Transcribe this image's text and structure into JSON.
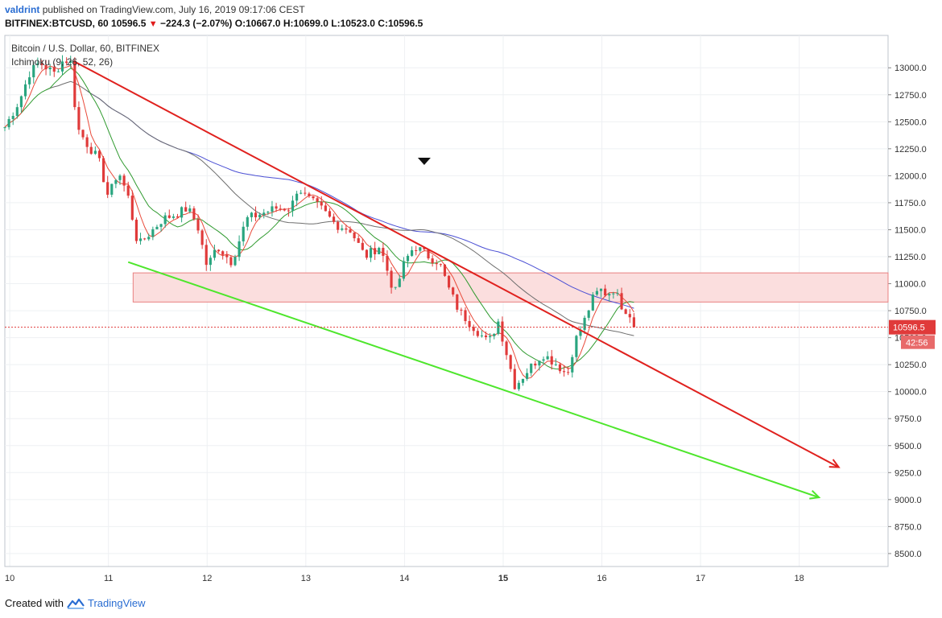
{
  "header": {
    "author": "valdrint",
    "published": "published on TradingView.com, July 16, 2019 09:17:06 CEST"
  },
  "symbol_line": {
    "symbol": "BITFINEX:BTCUSD, 60",
    "last": "10596.5",
    "change": "−224.3 (−2.07%)",
    "o_label": "O:",
    "o": "10667.0",
    "h_label": "H:",
    "h": "10699.0",
    "l_label": "L:",
    "l": "10523.0",
    "c_label": "C:",
    "c": "10596.5"
  },
  "footer": {
    "created_with": "Created with",
    "brand": "TradingView"
  },
  "colors": {
    "up": "#2aa57f",
    "down": "#e03a3a",
    "resistance_line": "#e0211e",
    "support_line": "#4ee62c",
    "zone_fill": "#fbdede",
    "zone_stroke": "#e88080",
    "ma_red": "#e94a3a",
    "ma_green": "#2f9a2f",
    "ma_gray": "#6e6e6e",
    "ma_blue": "#4a4fd4",
    "grid": "#eef0f3"
  },
  "chart_data": {
    "type": "candlestick",
    "title": "Bitcoin / U.S. Dollar, 60, BITFINEX",
    "indicator_label": "Ichimoku (9, 26, 52, 26)",
    "x_axis_ticks": [
      "10",
      "11",
      "12",
      "13",
      "14",
      "15",
      "16",
      "17",
      "18"
    ],
    "y_axis_ticks": [
      "8500.0",
      "8750.0",
      "9000.0",
      "9250.0",
      "9500.0",
      "9750.0",
      "10000.0",
      "10250.0",
      "10500.0",
      "10750.0",
      "11000.0",
      "11250.0",
      "11500.0",
      "11750.0",
      "12000.0",
      "12250.0",
      "12500.0",
      "12750.0",
      "13000.0"
    ],
    "ylim": [
      8380,
      13300
    ],
    "xlim": [
      9.95,
      18.9
    ],
    "grid": true,
    "price_label": "10596.5",
    "countdown_label": "42:56",
    "close_path": [
      [
        9.95,
        12450
      ],
      [
        10.1,
        12700
      ],
      [
        10.2,
        12950
      ],
      [
        10.3,
        13050
      ],
      [
        10.45,
        12950
      ],
      [
        10.55,
        13080
      ],
      [
        10.62,
        13050
      ],
      [
        10.68,
        12450
      ],
      [
        10.78,
        12300
      ],
      [
        10.9,
        12150
      ],
      [
        11.0,
        11800
      ],
      [
        11.1,
        12050
      ],
      [
        11.2,
        11800
      ],
      [
        11.3,
        11350
      ],
      [
        11.4,
        11450
      ],
      [
        11.55,
        11600
      ],
      [
        11.7,
        11650
      ],
      [
        11.8,
        11700
      ],
      [
        11.9,
        11550
      ],
      [
        12.0,
        11150
      ],
      [
        12.1,
        11350
      ],
      [
        12.25,
        11200
      ],
      [
        12.4,
        11600
      ],
      [
        12.55,
        11650
      ],
      [
        12.7,
        11700
      ],
      [
        12.85,
        11700
      ],
      [
        12.92,
        11900
      ],
      [
        13.0,
        11800
      ],
      [
        13.15,
        11700
      ],
      [
        13.3,
        11550
      ],
      [
        13.45,
        11500
      ],
      [
        13.6,
        11250
      ],
      [
        13.75,
        11350
      ],
      [
        13.9,
        10900
      ],
      [
        14.0,
        11200
      ],
      [
        14.1,
        11350
      ],
      [
        14.25,
        11250
      ],
      [
        14.35,
        11200
      ],
      [
        14.45,
        10950
      ],
      [
        14.55,
        10750
      ],
      [
        14.7,
        10600
      ],
      [
        14.85,
        10450
      ],
      [
        14.95,
        10650
      ],
      [
        15.05,
        10300
      ],
      [
        15.12,
        10050
      ],
      [
        15.25,
        10200
      ],
      [
        15.4,
        10350
      ],
      [
        15.55,
        10250
      ],
      [
        15.65,
        10150
      ],
      [
        15.72,
        10450
      ],
      [
        15.82,
        10650
      ],
      [
        15.9,
        10850
      ],
      [
        15.98,
        10950
      ],
      [
        16.05,
        10900
      ],
      [
        16.12,
        10950
      ],
      [
        16.2,
        10800
      ],
      [
        16.3,
        10700
      ],
      [
        16.36,
        10596.5
      ]
    ],
    "drawings": {
      "resistance_line": {
        "from": [
          10.65,
          13060
        ],
        "to": [
          18.4,
          9300
        ]
      },
      "support_line": {
        "from": [
          11.2,
          11200
        ],
        "to": [
          18.2,
          9020
        ]
      },
      "zone": {
        "x": [
          11.25,
          18.9
        ],
        "y": [
          10830,
          11100
        ]
      },
      "marker": {
        "x": 14.2,
        "y": 12130
      },
      "price_line": 10596.5
    }
  }
}
